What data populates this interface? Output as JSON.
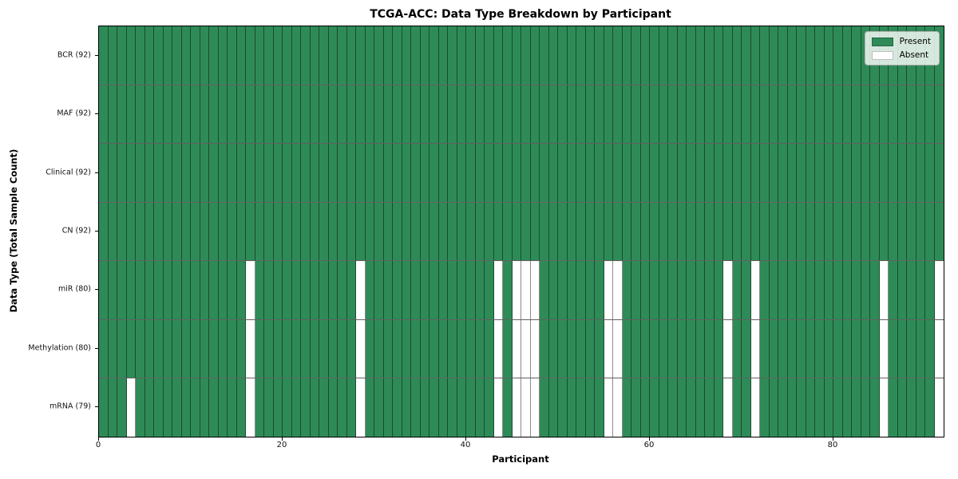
{
  "chart_data": {
    "type": "heatmap",
    "title": "TCGA-ACC: Data Type Breakdown by Participant",
    "xlabel": "Participant",
    "ylabel": "Data Type (Total Sample Count)",
    "x_range": [
      0,
      92
    ],
    "n_participants": 92,
    "xticks": [
      0,
      20,
      40,
      60,
      80
    ],
    "grid": false,
    "legend_position": "upper right",
    "colors": {
      "present": "#2e8b57",
      "absent": "#ffffff"
    },
    "legend": [
      {
        "label": "Present",
        "color": "#2e8b57"
      },
      {
        "label": "Absent",
        "color": "#ffffff"
      }
    ],
    "rows": [
      {
        "label": "BCR (92)",
        "data_type": "BCR",
        "total_samples": 92,
        "absent_participants": []
      },
      {
        "label": "MAF (92)",
        "data_type": "MAF",
        "total_samples": 92,
        "absent_participants": []
      },
      {
        "label": "Clinical (92)",
        "data_type": "Clinical",
        "total_samples": 92,
        "absent_participants": []
      },
      {
        "label": "CN (92)",
        "data_type": "CN",
        "total_samples": 92,
        "absent_participants": []
      },
      {
        "label": "miR (80)",
        "data_type": "miR",
        "total_samples": 80,
        "absent_participants": [
          16,
          28,
          43,
          45,
          46,
          47,
          55,
          56,
          68,
          71,
          85,
          91
        ]
      },
      {
        "label": "Methylation (80)",
        "data_type": "Methylation",
        "total_samples": 80,
        "absent_participants": [
          16,
          28,
          43,
          45,
          46,
          47,
          55,
          56,
          68,
          71,
          85,
          91
        ]
      },
      {
        "label": "mRNA (79)",
        "data_type": "mRNA",
        "total_samples": 79,
        "absent_participants": [
          3,
          16,
          28,
          43,
          45,
          46,
          47,
          55,
          56,
          68,
          71,
          85,
          91
        ]
      }
    ]
  }
}
